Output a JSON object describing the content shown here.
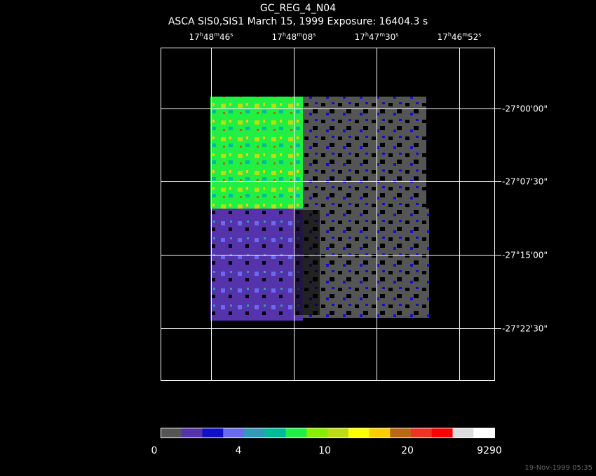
{
  "header": {
    "title": "GC_REG_4_N04",
    "subtitle": "ASCA SIS0,SIS1 March 15, 1999 Exposure: 16404.3 s"
  },
  "ra_labels": [
    [
      "17",
      "h",
      "48",
      "m",
      "46",
      "s"
    ],
    [
      "17",
      "h",
      "48",
      "m",
      "08",
      "s"
    ],
    [
      "17",
      "h",
      "47",
      "m",
      "30",
      "s"
    ],
    [
      "17",
      "h",
      "46",
      "m",
      "52",
      "s"
    ]
  ],
  "dec_labels": [
    "-27°00'00\"",
    "-27°07'30\"",
    "-27°15'00\"",
    "-27°22'30\""
  ],
  "colorbar": {
    "colors": [
      "#555555",
      "#5533aa",
      "#1010c8",
      "#6a6aee",
      "#3399bb",
      "#00bb99",
      "#22ee44",
      "#88ee00",
      "#bbdd11",
      "#ffff00",
      "#ffcc00",
      "#bb6611",
      "#ee3322",
      "#ff0000",
      "#dddddd",
      "#ffffff"
    ],
    "labels": [
      "0",
      "4",
      "10",
      "20",
      "9290"
    ]
  },
  "footer": {
    "timestamp": "19-Nov-1999 05:35"
  }
}
